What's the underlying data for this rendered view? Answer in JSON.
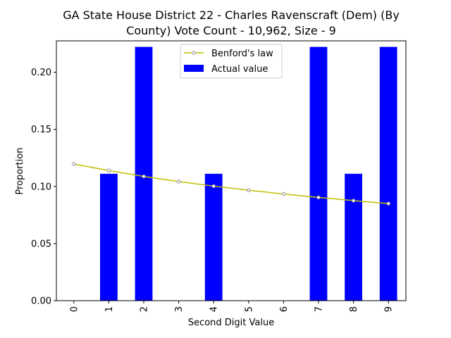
{
  "chart_data": {
    "type": "bar",
    "title_line1": "GA State House District 22 - Charles Ravenscraft (Dem) (By",
    "title_line2": "County) Vote Count - 10,962, Size - 9",
    "xlabel": "Second Digit Value",
    "ylabel": "Proportion",
    "categories": [
      "0",
      "1",
      "2",
      "3",
      "4",
      "5",
      "6",
      "7",
      "8",
      "9"
    ],
    "ylim": [
      0,
      0.2275
    ],
    "yticks": [
      "0.00",
      "0.05",
      "0.10",
      "0.15",
      "0.20"
    ],
    "grid": false,
    "legend_position": "top-center",
    "series": [
      {
        "name": "Benford's law",
        "kind": "line",
        "color": "#bfbf00",
        "values": [
          0.1197,
          0.1139,
          0.1088,
          0.1043,
          0.1003,
          0.0967,
          0.0934,
          0.0904,
          0.0876,
          0.085
        ]
      },
      {
        "name": "Actual value",
        "kind": "bar",
        "color": "#0000ff",
        "values": [
          0.0,
          0.1111,
          0.2222,
          0.0,
          0.1111,
          0.0,
          0.0,
          0.2222,
          0.1111,
          0.2222
        ]
      }
    ]
  }
}
